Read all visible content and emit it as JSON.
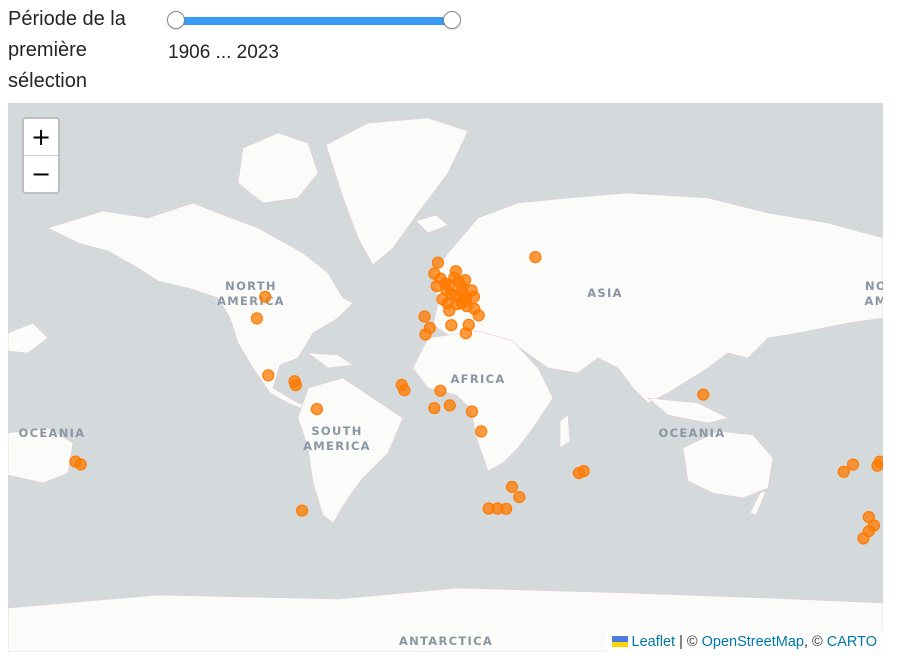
{
  "filter": {
    "label_lines": [
      "Période de la",
      "première",
      "sélection"
    ],
    "range_min": 1906,
    "range_max": 2023,
    "value_start": 1906,
    "value_end": 2023,
    "readout": "1906 ... 2023",
    "accent_color": "#3b9cf6"
  },
  "map": {
    "zoom_in_label": "+",
    "zoom_out_label": "−",
    "marker_color": "#ff7a00",
    "labels": {
      "north_america": [
        "NORTH",
        "AMERICA"
      ],
      "south_america": [
        "SOUTH",
        "AMERICA"
      ],
      "africa": "AFRICA",
      "asia": "ASIA",
      "oceania_west": "OCEANIA",
      "oceania_east": "OCEANIA",
      "north_america_right": [
        "NO",
        "AM"
      ],
      "antarctica": "ANTARCTICA"
    },
    "attribution": {
      "leaflet": "Leaflet",
      "sep1": " | © ",
      "osm": "OpenStreetMap",
      "sep2": ", © ",
      "carto": "CARTO"
    },
    "markers": [
      {
        "lat": 54.5,
        "lon": -2.5
      },
      {
        "lat": 51.8,
        "lon": -4.0
      },
      {
        "lat": 50.5,
        "lon": -1.5
      },
      {
        "lat": 49.2,
        "lon": 0.5
      },
      {
        "lat": 48.5,
        "lon": -3.0
      },
      {
        "lat": 48.8,
        "lon": 2.3
      },
      {
        "lat": 47.5,
        "lon": 1.0
      },
      {
        "lat": 46.5,
        "lon": 3.0
      },
      {
        "lat": 45.8,
        "lon": 4.8
      },
      {
        "lat": 44.8,
        "lon": -0.6
      },
      {
        "lat": 43.6,
        "lon": 1.4
      },
      {
        "lat": 43.3,
        "lon": 5.4
      },
      {
        "lat": 50.8,
        "lon": 4.3
      },
      {
        "lat": 52.4,
        "lon": 4.9
      },
      {
        "lat": 49.6,
        "lon": 6.1
      },
      {
        "lat": 48.2,
        "lon": 7.5
      },
      {
        "lat": 46.9,
        "lon": 7.4
      },
      {
        "lat": 45.4,
        "lon": 9.2
      },
      {
        "lat": 44.4,
        "lon": 8.9
      },
      {
        "lat": 43.7,
        "lon": 7.3
      },
      {
        "lat": 42.7,
        "lon": 9.4
      },
      {
        "lat": 47.3,
        "lon": 11.4
      },
      {
        "lat": 45.5,
        "lon": 12.3
      },
      {
        "lat": 50.1,
        "lon": 8.7
      },
      {
        "lat": 41.9,
        "lon": 12.5
      },
      {
        "lat": 41.4,
        "lon": 2.2
      },
      {
        "lat": 39.5,
        "lon": -8.0
      },
      {
        "lat": 36.7,
        "lon": 3.0
      },
      {
        "lat": 36.8,
        "lon": 10.2
      },
      {
        "lat": 33.6,
        "lon": -7.6
      },
      {
        "lat": 35.8,
        "lon": -5.8
      },
      {
        "lat": 34.0,
        "lon": 9.0
      },
      {
        "lat": 39.9,
        "lon": 14.3
      },
      {
        "lat": 55.8,
        "lon": 37.6
      },
      {
        "lat": 45.5,
        "lon": -73.6
      },
      {
        "lat": 38.9,
        "lon": -77.0
      },
      {
        "lat": 18.5,
        "lon": -72.3
      },
      {
        "lat": 14.6,
        "lon": -61.0
      },
      {
        "lat": 16.2,
        "lon": -61.5
      },
      {
        "lat": 4.9,
        "lon": -52.3
      },
      {
        "lat": -34.6,
        "lon": -58.4
      },
      {
        "lat": 14.7,
        "lon": -17.4
      },
      {
        "lat": 12.6,
        "lon": -16.3
      },
      {
        "lat": 12.4,
        "lon": -1.5
      },
      {
        "lat": 5.3,
        "lon": -4.0
      },
      {
        "lat": 6.4,
        "lon": 2.4
      },
      {
        "lat": 3.9,
        "lon": 11.5
      },
      {
        "lat": -4.3,
        "lon": 15.3
      },
      {
        "lat": -21.0,
        "lon": 55.5
      },
      {
        "lat": -20.2,
        "lon": 57.5
      },
      {
        "lat": -29.9,
        "lon": 31.0
      },
      {
        "lat": -26.2,
        "lon": 28.0
      },
      {
        "lat": -33.9,
        "lon": 18.4
      },
      {
        "lat": -34.0,
        "lon": 25.6
      },
      {
        "lat": -33.9,
        "lon": 22.0
      },
      {
        "lat": 10.8,
        "lon": 106.7
      },
      {
        "lat": -17.6,
        "lon": -149.5
      },
      {
        "lat": -16.5,
        "lon": -151.7
      },
      {
        "lat": -17.7,
        "lon": 168.3
      },
      {
        "lat": -16.5,
        "lon": 179.4
      },
      {
        "lat": -18.1,
        "lon": 178.4
      },
      {
        "lat": -20.5,
        "lon": 164.5
      },
      {
        "lat": -36.8,
        "lon": 174.8
      },
      {
        "lat": -39.5,
        "lon": 176.9
      },
      {
        "lat": -41.3,
        "lon": 174.8
      },
      {
        "lat": -43.5,
        "lon": 172.6
      }
    ]
  }
}
